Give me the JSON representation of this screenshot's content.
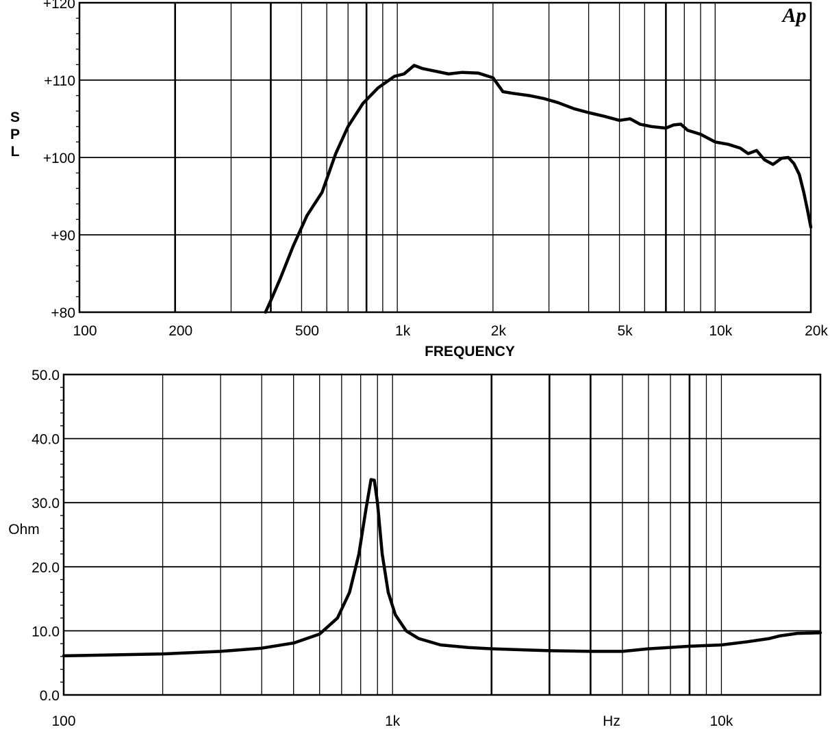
{
  "chart_data": [
    {
      "type": "line",
      "title": "",
      "xlabel": "FREQUENCY",
      "ylabel": "SPL",
      "x_scale": "log",
      "xlim": [
        100,
        20000
      ],
      "ylim": [
        80,
        120
      ],
      "grid": true,
      "logo": "Ap",
      "x_ticks": [
        {
          "value": 100,
          "label": "100"
        },
        {
          "value": 200,
          "label": "200"
        },
        {
          "value": 500,
          "label": "500"
        },
        {
          "value": 1000,
          "label": "1k"
        },
        {
          "value": 2000,
          "label": "2k"
        },
        {
          "value": 5000,
          "label": "5k"
        },
        {
          "value": 10000,
          "label": "10k"
        },
        {
          "value": 20000,
          "label": "20k"
        }
      ],
      "y_ticks": [
        {
          "value": 80,
          "label": "+80"
        },
        {
          "value": 90,
          "label": "+90"
        },
        {
          "value": 100,
          "label": "+100"
        },
        {
          "value": 110,
          "label": "+110"
        },
        {
          "value": 120,
          "label": "+120"
        }
      ],
      "series": [
        {
          "x": [
            385,
            400,
            430,
            470,
            520,
            580,
            640,
            700,
            780,
            870,
            980,
            1050,
            1130,
            1200,
            1300,
            1450,
            1600,
            1800,
            2000,
            2150,
            2300,
            2600,
            2900,
            3200,
            3600,
            4000,
            4500,
            5000,
            5400,
            5800,
            6300,
            7000,
            7400,
            7800,
            8200,
            9000,
            10000,
            11000,
            12000,
            12700,
            13500,
            14300,
            15200,
            16200,
            17000,
            17700,
            18400,
            19000,
            19500,
            20000
          ],
          "y": [
            80,
            81.5,
            84.5,
            88.5,
            92.5,
            95.5,
            100.5,
            104,
            107,
            109,
            110.5,
            110.8,
            111.9,
            111.5,
            111.2,
            110.8,
            111,
            110.9,
            110.3,
            108.5,
            108.3,
            108,
            107.6,
            107.1,
            106.3,
            105.8,
            105.3,
            104.8,
            105,
            104.3,
            104,
            103.8,
            104.2,
            104.3,
            103.5,
            103,
            102,
            101.7,
            101.2,
            100.5,
            100.9,
            99.7,
            99.1,
            99.9,
            100,
            99.2,
            97.8,
            95.5,
            93.3,
            91
          ]
        }
      ]
    },
    {
      "type": "line",
      "title": "",
      "xlabel": "Hz",
      "ylabel": "Ohm",
      "x_scale": "log",
      "xlim": [
        100,
        20000
      ],
      "ylim": [
        0,
        50
      ],
      "grid": true,
      "x_ticks": [
        {
          "value": 100,
          "label": "100"
        },
        {
          "value": 1000,
          "label": "1k"
        },
        {
          "value": 10000,
          "label": "10k"
        }
      ],
      "y_ticks": [
        {
          "value": 0,
          "label": "0.0"
        },
        {
          "value": 10,
          "label": "10.0"
        },
        {
          "value": 20,
          "label": "20.0"
        },
        {
          "value": 30,
          "label": "30.0"
        },
        {
          "value": 40,
          "label": "40.0"
        },
        {
          "value": 50,
          "label": "50.0"
        }
      ],
      "series": [
        {
          "x": [
            100,
            200,
            300,
            400,
            500,
            600,
            680,
            740,
            790,
            830,
            860,
            880,
            900,
            930,
            970,
            1020,
            1100,
            1200,
            1400,
            1700,
            2000,
            3000,
            4000,
            5000,
            6000,
            8000,
            10000,
            12000,
            14000,
            15000,
            17000,
            20000
          ],
          "y": [
            6.1,
            6.4,
            6.8,
            7.3,
            8.1,
            9.5,
            12,
            16,
            22,
            29,
            33.6,
            33.5,
            30,
            22,
            16,
            12.5,
            10,
            8.8,
            7.8,
            7.4,
            7.2,
            6.9,
            6.8,
            6.8,
            7.2,
            7.6,
            7.8,
            8.3,
            8.8,
            9.2,
            9.6,
            9.7
          ]
        }
      ]
    }
  ]
}
